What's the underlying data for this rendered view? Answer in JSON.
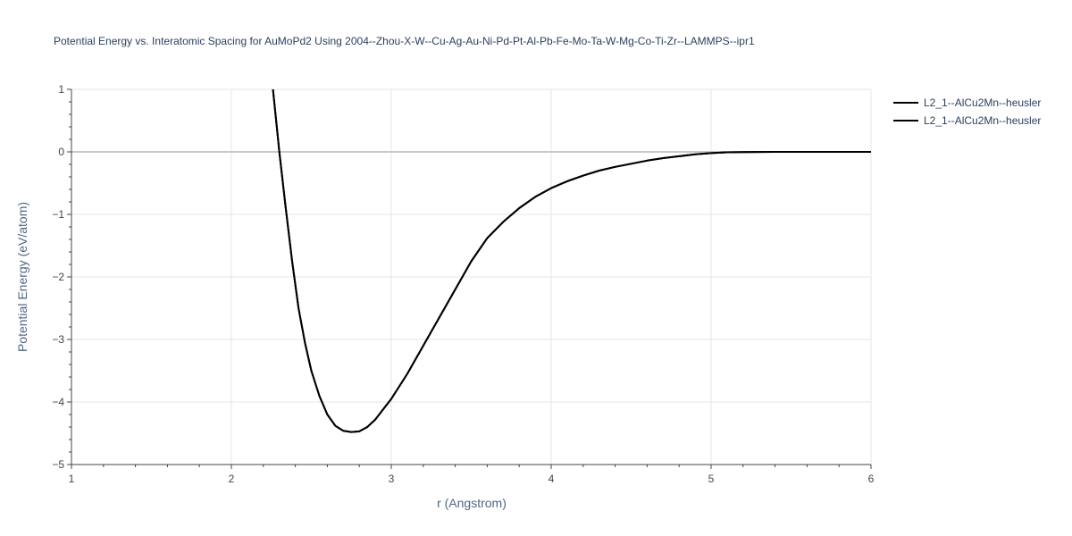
{
  "chart_data": {
    "type": "line",
    "title": "Potential Energy vs. Interatomic Spacing for AuMoPd2 Using 2004--Zhou-X-W--Cu-Ag-Au-Ni-Pd-Pt-Al-Pb-Fe-Mo-Ta-W-Mg-Co-Ti-Zr--LAMMPS--ipr1",
    "xlabel": "r (Angstrom)",
    "ylabel": "Potential Energy (eV/atom)",
    "xlim": [
      1,
      6
    ],
    "ylim": [
      -5,
      1
    ],
    "x_ticks": [
      "1",
      "2",
      "3",
      "4",
      "5",
      "6"
    ],
    "y_ticks": [
      "1",
      "0",
      "−1",
      "−2",
      "−3",
      "−4",
      "−5"
    ],
    "grid": true,
    "legend_position": "top-right",
    "series": [
      {
        "name": "L2_1--AlCu2Mn--heusler",
        "color": "#000000",
        "x": [
          2.26,
          2.3,
          2.34,
          2.38,
          2.42,
          2.46,
          2.5,
          2.55,
          2.6,
          2.65,
          2.7,
          2.75,
          2.8,
          2.85,
          2.9,
          3.0,
          3.1,
          3.2,
          3.3,
          3.4,
          3.5,
          3.6,
          3.7,
          3.8,
          3.9,
          4.0,
          4.1,
          4.2,
          4.3,
          4.4,
          4.5,
          4.6,
          4.7,
          4.8,
          4.9,
          5.0,
          5.1,
          5.2,
          5.4,
          5.6,
          5.8,
          6.0
        ],
        "y": [
          1.0,
          0.0,
          -0.9,
          -1.75,
          -2.5,
          -3.05,
          -3.5,
          -3.9,
          -4.2,
          -4.38,
          -4.46,
          -4.48,
          -4.47,
          -4.4,
          -4.28,
          -3.95,
          -3.55,
          -3.1,
          -2.65,
          -2.2,
          -1.75,
          -1.38,
          -1.12,
          -0.9,
          -0.72,
          -0.58,
          -0.47,
          -0.38,
          -0.3,
          -0.24,
          -0.19,
          -0.14,
          -0.1,
          -0.07,
          -0.04,
          -0.02,
          -0.008,
          -0.003,
          0.0,
          0.0,
          0.0,
          0.0
        ]
      },
      {
        "name": "L2_1--AlCu2Mn--heusler",
        "color": "#000000",
        "x": [
          2.26,
          2.3,
          2.34,
          2.38,
          2.42,
          2.46,
          2.5,
          2.55,
          2.6,
          2.65,
          2.7,
          2.75,
          2.8,
          2.85,
          2.9,
          3.0,
          3.1,
          3.2,
          3.3,
          3.4,
          3.5,
          3.6,
          3.7,
          3.8,
          3.9,
          4.0,
          4.1,
          4.2,
          4.3,
          4.4,
          4.5,
          4.6,
          4.7,
          4.8,
          4.9,
          5.0,
          5.1,
          5.2,
          5.4,
          5.6,
          5.8,
          6.0
        ],
        "y": [
          1.0,
          0.0,
          -0.9,
          -1.75,
          -2.5,
          -3.05,
          -3.5,
          -3.9,
          -4.2,
          -4.38,
          -4.46,
          -4.48,
          -4.47,
          -4.4,
          -4.28,
          -3.95,
          -3.55,
          -3.1,
          -2.65,
          -2.2,
          -1.75,
          -1.38,
          -1.12,
          -0.9,
          -0.72,
          -0.58,
          -0.47,
          -0.38,
          -0.3,
          -0.24,
          -0.19,
          -0.14,
          -0.1,
          -0.07,
          -0.04,
          -0.02,
          -0.008,
          -0.003,
          0.0,
          0.0,
          0.0,
          0.0
        ]
      }
    ]
  }
}
